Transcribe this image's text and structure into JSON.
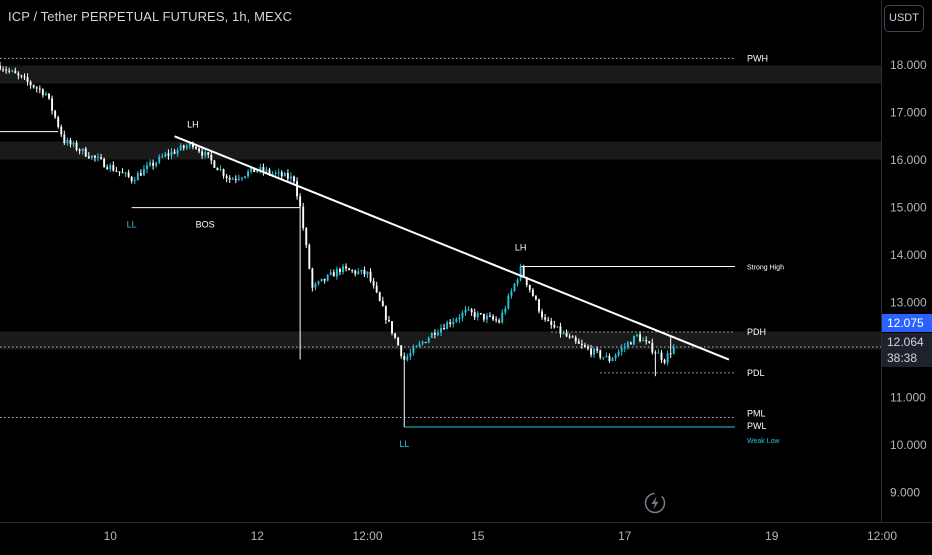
{
  "header": {
    "title": "ICP / Tether PERPETUAL FUTURES, 1h, MEXC",
    "currency": "USDT"
  },
  "price_badges": {
    "last_price": "12.075",
    "current_price": "12.064",
    "countdown": "38:38"
  },
  "colors": {
    "background": "#000000",
    "up": "#26c6da",
    "down": "#ffffff",
    "level_line": "#ffffff",
    "dotted_line": "#b2b5be",
    "weak_low": "#26c6da",
    "label_text": "#ffffff",
    "axis_text": "#b2b5be",
    "accent": "#2962ff"
  },
  "icons": {
    "lightning": "lightning-icon"
  },
  "chart_data": {
    "type": "candlestick",
    "symbol": "ICP / Tether PERPETUAL FUTURES",
    "timeframe": "1h",
    "exchange": "MEXC",
    "y_axis": {
      "ticks": [
        18.0,
        17.0,
        16.0,
        15.0,
        14.0,
        13.0,
        11.0,
        10.0,
        9.0
      ],
      "tick_labels": [
        "18.000",
        "17.000",
        "16.000",
        "15.000",
        "14.000",
        "13.000",
        "11.000",
        "10.000",
        "9.000"
      ],
      "range": [
        8.38,
        19.37
      ]
    },
    "x_axis": {
      "tick_labels": [
        "10",
        "12",
        "12:00",
        "15",
        "17",
        "19",
        "12:00"
      ],
      "range": [
        "2024-05-08 12:00",
        "2024-05-20 12:00"
      ]
    },
    "key_points": [
      {
        "time": "2024-05-08 12:00",
        "price": 17.99
      },
      {
        "time": "2024-05-09 03:00",
        "price": 17.4
      },
      {
        "time": "2024-05-09 09:00",
        "price": 16.4
      },
      {
        "time": "2024-05-10 07:00",
        "price": 15.6
      },
      {
        "time": "2024-05-10 18:00",
        "price": 16.1
      },
      {
        "time": "2024-05-11 03:00",
        "price": 16.35
      },
      {
        "time": "2024-05-11 15:00",
        "price": 15.6
      },
      {
        "time": "2024-05-12 00:00",
        "price": 15.8
      },
      {
        "time": "2024-05-12 12:00",
        "price": 15.6
      },
      {
        "time": "2024-05-12 14:00",
        "price": 15.0
      },
      {
        "time": "2024-05-12 18:00",
        "price": 13.3
      },
      {
        "time": "2024-05-13 03:00",
        "price": 13.7
      },
      {
        "time": "2024-05-13 12:00",
        "price": 13.6
      },
      {
        "time": "2024-05-14 00:00",
        "price": 11.8
      },
      {
        "time": "2024-05-14 10:00",
        "price": 12.4
      },
      {
        "time": "2024-05-14 20:00",
        "price": 12.8
      },
      {
        "time": "2024-05-15 07:00",
        "price": 12.6
      },
      {
        "time": "2024-05-15 14:00",
        "price": 13.7
      },
      {
        "time": "2024-05-15 22:00",
        "price": 12.6
      },
      {
        "time": "2024-05-16 09:00",
        "price": 12.1
      },
      {
        "time": "2024-05-16 19:00",
        "price": 11.8
      },
      {
        "time": "2024-05-17 04:00",
        "price": 12.3
      },
      {
        "time": "2024-05-17 13:00",
        "price": 11.8
      },
      {
        "time": "2024-05-17 16:00",
        "price": 12.064
      }
    ],
    "extrema": [
      {
        "time": "2024-05-12 14:00",
        "low": 11.8
      },
      {
        "time": "2024-05-14 00:00",
        "low": 10.38
      },
      {
        "time": "2024-05-17 10:00",
        "low": 11.45
      },
      {
        "time": "2024-05-17 15:00",
        "high": 12.3
      }
    ],
    "levels": [
      {
        "label": "PWH",
        "price": 18.14,
        "style": "dotted",
        "from": "2024-05-08 12:00",
        "to": "2024-05-18 12:00"
      },
      {
        "label": "",
        "price": 17.8,
        "style": "band"
      },
      {
        "label": "",
        "price": 16.6,
        "style": "solid",
        "from": "2024-05-08 12:00",
        "to": "2024-05-09 07:00"
      },
      {
        "label": "",
        "price": 16.2,
        "style": "band"
      },
      {
        "label": "Strong High",
        "price": 13.76,
        "style": "solid",
        "from": "2024-05-15 14:00",
        "to": "2024-05-18 12:00"
      },
      {
        "label": "PDH",
        "price": 12.38,
        "style": "dotted",
        "from": "2024-05-16 00:00",
        "to": "2024-05-18 12:00"
      },
      {
        "label": "",
        "price": 12.2,
        "style": "band"
      },
      {
        "label": "",
        "price": 12.064,
        "style": "dotted",
        "from": "2024-05-08 12:00",
        "to": "2024-05-20 12:00"
      },
      {
        "label": "PDL",
        "price": 11.52,
        "style": "dotted",
        "from": "2024-05-16 16:00",
        "to": "2024-05-18 12:00"
      },
      {
        "label": "PML",
        "price": 10.58,
        "style": "dotted",
        "from": "2024-05-08 12:00",
        "to": "2024-05-18 12:00"
      },
      {
        "label": "PWL",
        "price": 10.38,
        "style": "solid",
        "color": "weak_low",
        "from": "2024-05-14 00:00",
        "to": "2024-05-18 12:00"
      },
      {
        "label": "",
        "price": 15.0,
        "style": "solid",
        "from": "2024-05-10 07:00",
        "to": "2024-05-12 14:00"
      }
    ],
    "trendline": {
      "from": {
        "time": "2024-05-10 21:00",
        "price": 16.5
      },
      "to": {
        "time": "2024-05-18 10:00",
        "price": 11.8
      }
    },
    "annotations": [
      {
        "text": "LH",
        "time": "2024-05-11 03:00",
        "price": 16.35,
        "position": "above",
        "color": "label_text"
      },
      {
        "text": "LL",
        "time": "2024-05-10 07:00",
        "price": 15.0,
        "position": "below",
        "color": "weak_low"
      },
      {
        "text": "BOS",
        "time": "2024-05-11 07:00",
        "price": 15.0,
        "position": "below",
        "color": "label_text"
      },
      {
        "text": "LH",
        "time": "2024-05-15 14:00",
        "price": 13.76,
        "position": "above",
        "color": "label_text"
      },
      {
        "text": "LL",
        "time": "2024-05-14 00:00",
        "price": 10.38,
        "position": "below",
        "color": "weak_low"
      },
      {
        "text": "Weak Low",
        "time": "2024-05-18 12:00",
        "price": 10.38,
        "position": "below-right",
        "color": "weak_low"
      }
    ]
  }
}
